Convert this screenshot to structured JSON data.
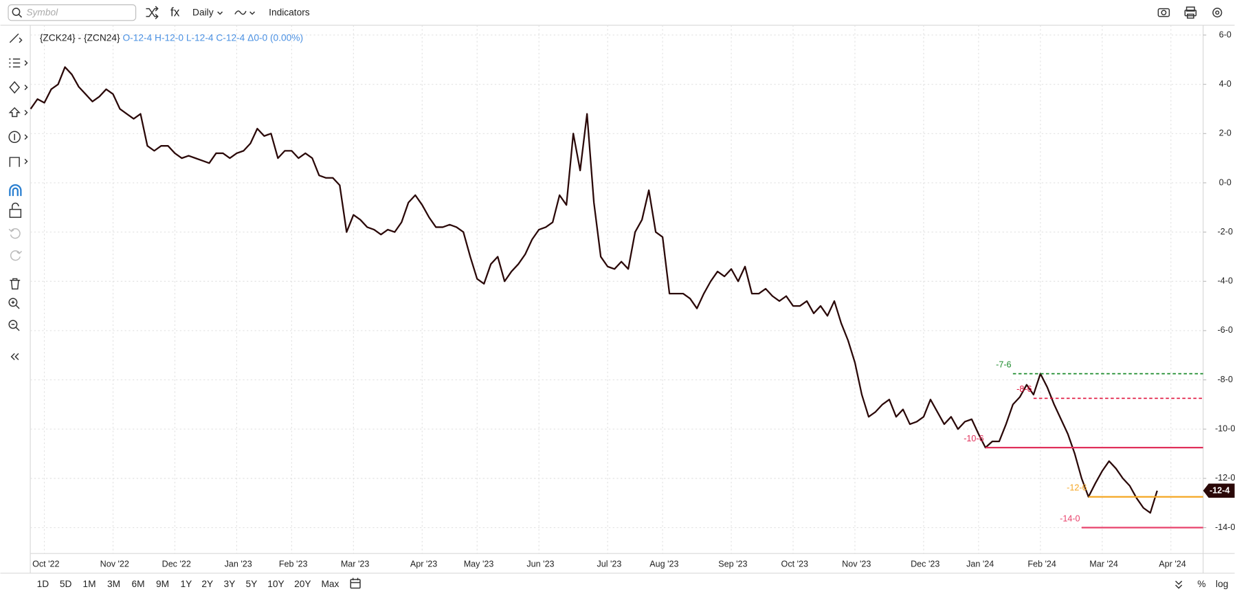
{
  "toolbar": {
    "symbol_placeholder": "Symbol",
    "fx": "fx",
    "interval": "Daily",
    "indicators": "Indicators"
  },
  "legend": {
    "symbol": "{ZCK24} - {ZCN24}",
    "ohlc": "O-12-4 H-12-0 L-12-4 C-12-4 Δ0-0 (0.00%)"
  },
  "periods": [
    "1D",
    "5D",
    "1M",
    "3M",
    "6M",
    "9M",
    "1Y",
    "2Y",
    "3Y",
    "5Y",
    "10Y",
    "20Y",
    "Max"
  ],
  "scale_buttons": [
    "%",
    "log"
  ],
  "chart_data": {
    "type": "line",
    "categories": [
      null,
      null,
      "Oct '22",
      null,
      null,
      null,
      null,
      null,
      null,
      null,
      null,
      null,
      "Nov '22",
      null,
      null,
      null,
      null,
      null,
      null,
      null,
      null,
      "Dec '22",
      null,
      null,
      null,
      null,
      null,
      null,
      null,
      null,
      "Jan '23",
      null,
      null,
      null,
      null,
      null,
      null,
      null,
      "Feb '23",
      null,
      null,
      null,
      null,
      null,
      null,
      null,
      null,
      "Mar '23",
      null,
      null,
      null,
      null,
      null,
      null,
      null,
      null,
      null,
      "Apr '23",
      null,
      null,
      null,
      null,
      null,
      null,
      null,
      "May '23",
      null,
      null,
      null,
      null,
      null,
      null,
      null,
      null,
      "Jun '23",
      null,
      null,
      null,
      null,
      null,
      null,
      null,
      null,
      null,
      "Jul '23",
      null,
      null,
      null,
      null,
      null,
      null,
      null,
      "Aug '23",
      null,
      null,
      null,
      null,
      null,
      null,
      null,
      null,
      null,
      "Sep '23",
      null,
      null,
      null,
      null,
      null,
      null,
      null,
      null,
      "Oct '23",
      null,
      null,
      null,
      null,
      null,
      null,
      null,
      null,
      "Nov '23",
      null,
      null,
      null,
      null,
      null,
      null,
      null,
      null,
      null,
      "Dec '23",
      null,
      null,
      null,
      null,
      null,
      null,
      null,
      "Jan '24",
      null,
      null,
      null,
      null,
      null,
      null,
      null,
      null,
      "Feb '24",
      null,
      null,
      null,
      null,
      null,
      null,
      null,
      null,
      "Mar '24",
      null,
      null,
      null,
      null,
      null,
      null,
      null,
      null,
      null,
      "Apr '24",
      null,
      null,
      null,
      null
    ],
    "series": [
      {
        "color": "#2a0808",
        "values": [
          3.0,
          3.4,
          3.25,
          3.8,
          4.0,
          4.7,
          4.4,
          3.9,
          3.6,
          3.3,
          3.5,
          3.8,
          3.6,
          3.0,
          2.8,
          2.6,
          2.8,
          1.5,
          1.3,
          1.5,
          1.5,
          1.2,
          1.0,
          1.1,
          1.0,
          0.9,
          0.8,
          1.2,
          1.2,
          1.0,
          1.2,
          1.3,
          1.6,
          2.2,
          1.9,
          2.0,
          1.0,
          1.3,
          1.3,
          1.0,
          1.2,
          1.0,
          0.3,
          0.2,
          0.2,
          -0.1,
          -2.0,
          -1.3,
          -1.5,
          -1.8,
          -1.9,
          -2.1,
          -1.9,
          -2.0,
          -1.6,
          -0.8,
          -0.5,
          -0.9,
          -1.4,
          -1.8,
          -1.8,
          -1.7,
          -1.8,
          -2.0,
          -3.0,
          -3.9,
          -4.1,
          -3.3,
          -3.0,
          -4.0,
          -3.6,
          -3.3,
          -2.9,
          -2.3,
          -1.9,
          -1.8,
          -1.6,
          -0.5,
          -0.9,
          2.0,
          0.5,
          2.8,
          -0.8,
          -3.0,
          -3.4,
          -3.5,
          -3.2,
          -3.5,
          -2.0,
          -1.5,
          -0.3,
          -2.0,
          -2.2,
          -4.5,
          -4.5,
          -4.5,
          -4.7,
          -5.1,
          -4.5,
          -4.0,
          -3.6,
          -3.8,
          -3.5,
          -4.0,
          -3.4,
          -4.5,
          -4.5,
          -4.3,
          -4.6,
          -4.8,
          -4.6,
          -5.0,
          -5.0,
          -4.8,
          -5.3,
          -5.0,
          -5.4,
          -4.8,
          -5.7,
          -6.4,
          -7.3,
          -8.6,
          -9.5,
          -9.3,
          -9.0,
          -8.8,
          -9.5,
          -9.2,
          -9.8,
          -9.7,
          -9.5,
          -8.8,
          -9.3,
          -9.8,
          -9.5,
          -10.0,
          -9.7,
          -9.6,
          -10.2,
          -10.75,
          -10.5,
          -10.5,
          -9.8,
          -9.0,
          -8.7,
          -8.2,
          -8.6,
          -7.75,
          -8.3,
          -9.0,
          -9.6,
          -10.2,
          -11.0,
          -12.0,
          -12.75,
          -12.2,
          -11.7,
          -11.3,
          -11.6,
          -12.0,
          -12.3,
          -12.8,
          -13.2,
          -13.4,
          -12.5,
          null,
          null,
          null,
          null,
          null,
          null
        ]
      }
    ],
    "ylim": [
      -15.05,
      6.4
    ],
    "yticks": [
      {
        "value": 6,
        "label": "6-0"
      },
      {
        "value": 4,
        "label": "4-0"
      },
      {
        "value": 2,
        "label": "2-0"
      },
      {
        "value": 0,
        "label": "0-0"
      },
      {
        "value": -2,
        "label": "-2-0"
      },
      {
        "value": -4,
        "label": "-4-0"
      },
      {
        "value": -6,
        "label": "-6-0"
      },
      {
        "value": -8,
        "label": "-8-0"
      },
      {
        "value": -10,
        "label": "-10-0"
      },
      {
        "value": -12,
        "label": "-12-0"
      },
      {
        "value": -14,
        "label": "-14-0"
      }
    ],
    "grid": true,
    "last_price": {
      "value": -12.5,
      "label": "-12-4"
    },
    "levels": [
      {
        "value": -7.75,
        "label": "-7-6",
        "color": "#1a8a2a",
        "style": "dashed",
        "start": 143
      },
      {
        "value": -8.75,
        "label": "-8-6",
        "color": "#e0103a",
        "style": "dashed",
        "start": 146
      },
      {
        "value": -10.75,
        "label": "-10-6",
        "color": "#e0305a",
        "style": "solid",
        "start": 139
      },
      {
        "value": -12.75,
        "label": "-12-6",
        "color": "#f5a623",
        "style": "solid",
        "start": 154
      },
      {
        "value": -14,
        "label": "-14-0",
        "color": "#e8406a",
        "style": "solid",
        "start": 153
      }
    ]
  }
}
